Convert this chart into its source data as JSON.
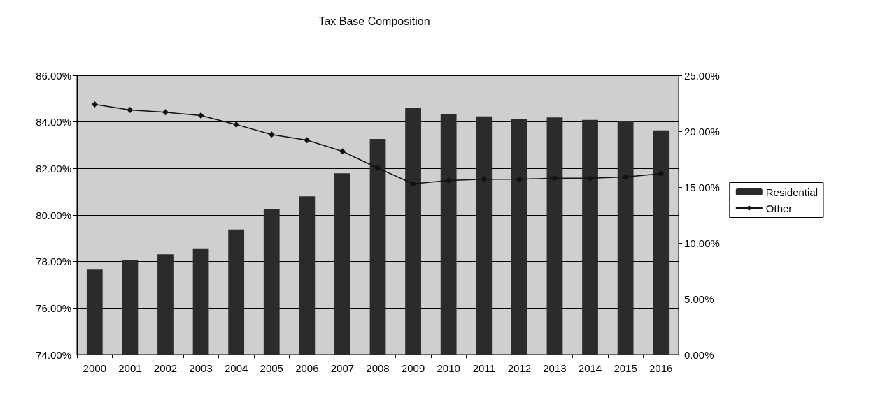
{
  "chart_data": {
    "type": "bar",
    "title": "Tax Base Composition",
    "categories": [
      "2000",
      "2001",
      "2002",
      "2003",
      "2004",
      "2005",
      "2006",
      "2007",
      "2008",
      "2009",
      "2010",
      "2011",
      "2012",
      "2013",
      "2014",
      "2015",
      "2016"
    ],
    "series": [
      {
        "name": "Residential",
        "color": "#2b2b2b",
        "values": [
          77.65,
          78.07,
          78.31,
          78.57,
          79.38,
          80.26,
          80.8,
          81.79,
          83.27,
          84.59,
          84.34,
          84.24,
          84.14,
          84.19,
          84.09,
          84.04,
          83.64
        ]
      },
      {
        "name": "Other",
        "type": "line",
        "axis": "y2",
        "color": "#111111",
        "marker": "diamond",
        "values": [
          22.4,
          21.9,
          21.7,
          21.4,
          20.6,
          19.7,
          19.2,
          18.2,
          16.7,
          15.3,
          15.6,
          15.7,
          15.7,
          15.8,
          15.8,
          15.9,
          16.2
        ]
      }
    ],
    "ylim": [
      74,
      86
    ],
    "yticks": [
      {
        "value": 74,
        "label": "74.00%"
      },
      {
        "value": 76,
        "label": "76.00%"
      },
      {
        "value": 78,
        "label": "78.00%"
      },
      {
        "value": 80,
        "label": "80.00%"
      },
      {
        "value": 82,
        "label": "82.00%"
      },
      {
        "value": 84,
        "label": "84.00%"
      },
      {
        "value": 86,
        "label": "86.00%"
      }
    ],
    "y2lim": [
      0,
      25
    ],
    "y2ticks": [
      {
        "value": 0,
        "label": "0.00%"
      },
      {
        "value": 5,
        "label": "5.00%"
      },
      {
        "value": 10,
        "label": "10.00%"
      },
      {
        "value": 15,
        "label": "15.00%"
      },
      {
        "value": 20,
        "label": "20.00%"
      },
      {
        "value": 25,
        "label": "25.00%"
      }
    ],
    "grid": "y",
    "legend": "right"
  }
}
